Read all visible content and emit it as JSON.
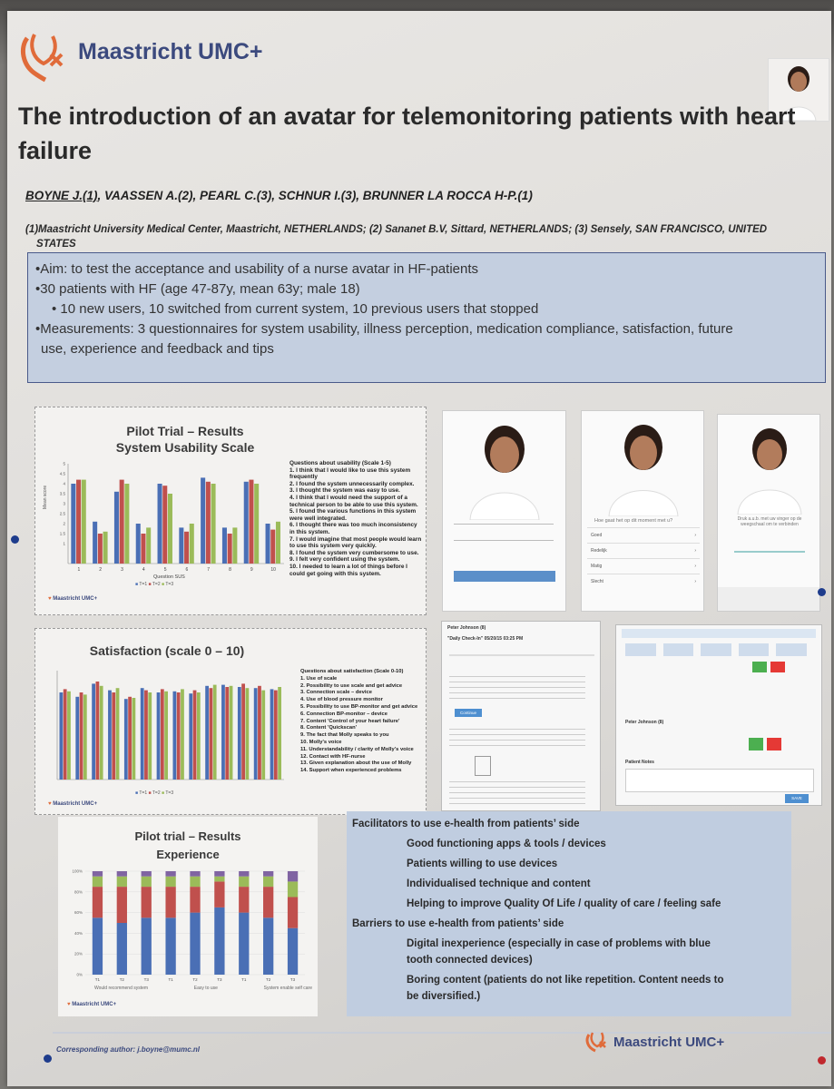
{
  "header": {
    "logo_text": "Maastricht UMC+",
    "title_line1": "The introduction of an avatar for telemonitoring patients with heart",
    "title_line2": "failure",
    "authors_underlined": "BOYNE J.(1)",
    "authors_rest": ", VAASSEN A.(2), PEARL C.(3), SCHNUR I.(3), BRUNNER LA ROCCA H-P.(1)",
    "affiliations_line1": "(1)Maastricht University Medical Center, Maastricht, NETHERLANDS; (2) Sananet B.V, Sittard, NETHERLANDS; (3) Sensely, SAN FRANCISCO, UNITED",
    "affiliations_line2": "STATES"
  },
  "aims": [
    "•Aim: to test the acceptance and usability of a nurse avatar in HF-patients",
    "•30 patients with HF (age 47-87y, mean 63y; male 18)",
    "• 10 new users, 10 switched from current system, 10 previous users that stopped",
    "•Measurements: 3 questionnaires for system usability, illness perception, medication compliance,   satisfaction, future",
    "use, experience and feedback and tips"
  ],
  "sus_panel": {
    "title1": "Pilot Trial – Results",
    "title2": "System Usability Scale",
    "ylabel": "Mean score",
    "xlabel": "Question SUS",
    "legend": [
      "T=1",
      "T=2",
      "T=3"
    ],
    "questions_title": "Questions about usability  (Scale 1-5)",
    "questions": [
      "1. I think that I would like to use this system frequently",
      "2. I found the system unnecessarily complex.",
      "3. I thought the system was easy to use.",
      "4. I think that I would need the support of a technical person to be able  to use this system.",
      "5. I found the various functions in this system were well integrated.",
      "6. I thought there was too much inconsistency in this system.",
      "7. I would imagine that most people would learn to use this system very  quickly.",
      "8. I found the system very cumbersome to use.",
      "9. I felt very confident using the system.",
      "10. I needed to learn a lot of things before I could get going with this  system."
    ],
    "footer_logo": "Maastricht UMC+"
  },
  "sat_panel": {
    "title": "Satisfaction (scale 0 – 10)",
    "legend": [
      "T=1",
      "T=2",
      "T=3"
    ],
    "questions": [
      "Questions about satisfaction (Scale 0-10)",
      "1. Use of scale",
      "2. Possibility to use scale and get advice",
      "3. Connection scale – device",
      "4. Use of blood pressure monitor",
      "5. Possibility to use BP-monitor and get advice",
      "6. Connection BP-monitor – device",
      "7. Content 'Control of your heart failure'",
      "8. Content 'Quickscan'",
      "9. The fact that Molly speaks to you",
      "10. Molly's voice",
      "11. Understandability / clarity of Molly's voice",
      "12. Contact with HF-nurse",
      "13. Given explanation about the use of Molly",
      "14. Support when experienced problems"
    ],
    "footer_logo": "Maastricht UMC+"
  },
  "exp_panel": {
    "title1": "Pilot trial – Results",
    "title2": "Experience",
    "groups": [
      "Would recommend system",
      "Easy to use",
      "System enable self care"
    ],
    "footer_logo": "Maastricht UMC+"
  },
  "chart_data": [
    {
      "type": "bar",
      "title": "Pilot Trial – Results System Usability Scale",
      "xlabel": "Question SUS",
      "ylabel": "Mean score",
      "ylim": [
        0,
        5
      ],
      "categories": [
        "1",
        "2",
        "3",
        "4",
        "5",
        "6",
        "7",
        "8",
        "9",
        "10"
      ],
      "series": [
        {
          "name": "T=1",
          "values": [
            4.0,
            2.1,
            3.6,
            2.0,
            4.0,
            1.8,
            4.3,
            1.8,
            4.1,
            2.0
          ]
        },
        {
          "name": "T=2",
          "values": [
            4.2,
            1.5,
            4.2,
            1.5,
            3.9,
            1.6,
            4.1,
            1.5,
            4.2,
            1.7
          ]
        },
        {
          "name": "T=3",
          "values": [
            4.2,
            1.6,
            4.0,
            1.8,
            3.5,
            2.0,
            4.0,
            1.8,
            4.0,
            2.1
          ]
        }
      ],
      "colors": [
        "#4a6fb5",
        "#c0504d",
        "#9bbb59"
      ]
    },
    {
      "type": "bar",
      "title": "Satisfaction (scale 0 – 10)",
      "ylim": [
        0,
        10
      ],
      "categories": [
        "1",
        "2",
        "3",
        "4",
        "5",
        "6",
        "7",
        "8",
        "9",
        "10",
        "11",
        "12",
        "13",
        "14"
      ],
      "series": [
        {
          "name": "T=1",
          "values": [
            8.0,
            7.6,
            8.8,
            8.2,
            7.4,
            8.4,
            8.0,
            8.1,
            7.9,
            8.6,
            8.7,
            8.5,
            8.4,
            8.3
          ]
        },
        {
          "name": "T=2",
          "values": [
            8.3,
            8.0,
            9.0,
            8.0,
            7.6,
            8.2,
            8.3,
            8.0,
            8.2,
            8.4,
            8.5,
            8.8,
            8.6,
            8.2
          ]
        },
        {
          "name": "T=3",
          "values": [
            8.1,
            7.8,
            8.6,
            8.4,
            7.5,
            8.0,
            8.1,
            8.3,
            8.0,
            8.7,
            8.6,
            8.4,
            8.2,
            8.5
          ]
        }
      ],
      "colors": [
        "#4a6fb5",
        "#c0504d",
        "#9bbb59"
      ]
    },
    {
      "type": "bar",
      "title": "Pilot trial – Results Experience",
      "stacked": true,
      "ylim": [
        0,
        100
      ],
      "categories": [
        "T1",
        "T2",
        "T3",
        "T1",
        "T2",
        "T3",
        "T1",
        "T2",
        "T3"
      ],
      "series": [
        {
          "name": "",
          "values": [
            55,
            50,
            55,
            55,
            60,
            65,
            60,
            55,
            45
          ]
        },
        {
          "name": "",
          "values": [
            30,
            35,
            30,
            30,
            25,
            25,
            25,
            30,
            30
          ]
        },
        {
          "name": "",
          "values": [
            10,
            10,
            10,
            10,
            10,
            5,
            10,
            10,
            15
          ]
        },
        {
          "name": "",
          "values": [
            5,
            5,
            5,
            5,
            5,
            5,
            5,
            5,
            10
          ]
        }
      ],
      "colors": [
        "#4a6fb5",
        "#c0504d",
        "#9bbb59",
        "#8064a2"
      ]
    }
  ],
  "screens": {
    "phone2_question": "Hoe gaat het op dit moment met u?",
    "phone2_options": [
      "Goed",
      "Redelijk",
      "Matig",
      "Slecht"
    ],
    "phone3_text": "Druk a.u.b. met uw vinger op de weegschaal om te verbinden",
    "chat_name": "Peter Johnson (8)",
    "chat_title": "\"Daily Check-In\" 05/20/15 03:25 PM",
    "chat_button": "Continue",
    "dash_name": "Peter Johnson (8)",
    "dash_notes": "Patient Notes",
    "dash_save": "SAVE"
  },
  "facilitators": {
    "heading": "Facilitators to use e-health from patients’ side",
    "items": [
      "Good functioning apps & tools / devices",
      "Patients willing to use devices",
      "Individualised technique and content",
      "Helping to improve Quality Of Life / quality of care / feeling safe"
    ],
    "barriers_heading": "Barriers to use e-health from patients’ side",
    "barrier1_line1": "Digital inexperience (especially in case of problems with blue",
    "barrier1_line2": "tooth connected devices)",
    "barrier2_line1": "Boring content (patients do not like repetition. Content needs to",
    "barrier2_line2": "be diversified.)"
  },
  "footer": {
    "author": "Corresponding author: j.boyne@mumc.nl",
    "logo_text": "Maastricht UMC+"
  }
}
